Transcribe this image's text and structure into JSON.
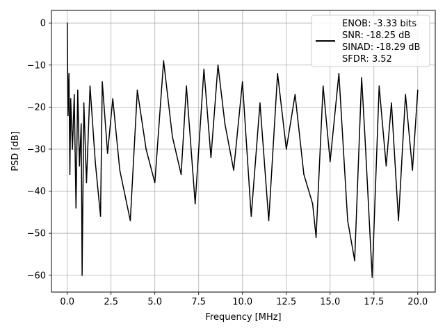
{
  "chart_data": {
    "type": "line",
    "xlabel": "Frequency [MHz]",
    "ylabel": "PSD [dB]",
    "xlim": [
      -0.9,
      21.0
    ],
    "ylim": [
      -64,
      3
    ],
    "xticks": [
      0.0,
      2.5,
      5.0,
      7.5,
      10.0,
      12.5,
      15.0,
      17.5,
      20.0
    ],
    "xtick_labels": [
      "0.0",
      "2.5",
      "5.0",
      "7.5",
      "10.0",
      "12.5",
      "15.0",
      "17.5",
      "20.0"
    ],
    "yticks": [
      0,
      -10,
      -20,
      -30,
      -40,
      -50,
      -60
    ],
    "ytick_labels": [
      "0",
      "−10",
      "−20",
      "−30",
      "−40",
      "−50",
      "−60"
    ],
    "grid": true,
    "legend_position": "top-right",
    "series": [
      {
        "name": "",
        "color": "#000000",
        "x": [
          0.0,
          0.05,
          0.1,
          0.15,
          0.2,
          0.3,
          0.4,
          0.5,
          0.6,
          0.7,
          0.8,
          0.85,
          0.95,
          1.1,
          1.3,
          1.6,
          1.9,
          2.0,
          2.3,
          2.6,
          3.0,
          3.6,
          4.0,
          4.5,
          5.0,
          5.5,
          6.0,
          6.5,
          6.8,
          7.3,
          7.8,
          8.2,
          8.6,
          9.0,
          9.5,
          10.0,
          10.5,
          11.0,
          11.5,
          12.0,
          12.5,
          13.0,
          13.5,
          14.0,
          14.2,
          14.6,
          15.0,
          15.5,
          16.0,
          16.4,
          16.8,
          17.0,
          17.4,
          17.8,
          18.2,
          18.5,
          18.9,
          19.3,
          19.7,
          20.0
        ],
        "values": [
          0.0,
          -22.0,
          -12.0,
          -36.0,
          -18.0,
          -30.0,
          -17.0,
          -44.0,
          -16.0,
          -34.0,
          -24.0,
          -60.0,
          -19.0,
          -38.0,
          -15.0,
          -33.0,
          -46.0,
          -14.0,
          -31.0,
          -18.0,
          -35.0,
          -47.0,
          -16.0,
          -30.0,
          -38.0,
          -9.0,
          -27.0,
          -36.0,
          -15.0,
          -43.0,
          -11.0,
          -32.0,
          -10.0,
          -24.0,
          -35.0,
          -14.0,
          -46.0,
          -19.0,
          -47.0,
          -12.0,
          -30.0,
          -17.0,
          -36.0,
          -43.0,
          -51.0,
          -15.0,
          -33.0,
          -12.0,
          -47.0,
          -56.5,
          -13.0,
          -28.0,
          -60.5,
          -15.0,
          -34.0,
          -19.0,
          -47.0,
          -17.0,
          -35.0,
          -16.0
        ]
      }
    ],
    "legend": {
      "lines": [
        "ENOB: -3.33 bits",
        "SNR: -18.25 dB",
        "SINAD: -18.29 dB",
        "SFDR: 3.52"
      ]
    }
  }
}
